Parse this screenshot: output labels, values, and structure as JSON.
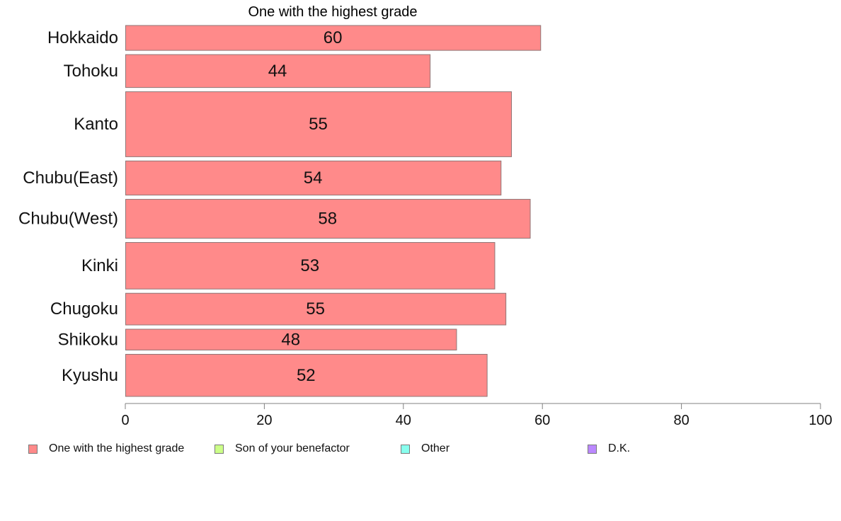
{
  "chart_data": {
    "type": "bar",
    "orientation": "horizontal",
    "title": "One with the highest grade",
    "categories": [
      "Hokkaido",
      "Tohoku",
      "Kanto",
      "Chubu(East)",
      "Chubu(West)",
      "Kinki",
      "Chugoku",
      "Shikoku",
      "Kyushu"
    ],
    "values": [
      59.7,
      43.8,
      55.5,
      54.0,
      58.2,
      53.1,
      54.7,
      47.6,
      52.0
    ],
    "data_labels": [
      "60",
      "44",
      "55",
      "54",
      "58",
      "53",
      "55",
      "48",
      "52"
    ],
    "bar_weights": [
      0.62,
      0.82,
      1.62,
      0.85,
      0.97,
      1.16,
      0.79,
      0.52,
      1.05
    ],
    "xlim": [
      0,
      100
    ],
    "x_ticks": [
      0,
      20,
      40,
      60,
      80,
      100
    ],
    "x_tick_labels": [
      "0",
      "20",
      "40",
      "60",
      "80",
      "100"
    ],
    "grid": false,
    "bar_color": "#ff8a8a",
    "bar_border_color": "#8f7676",
    "legend_position": "bottom",
    "legend": [
      {
        "label": "One with the highest grade",
        "color": "#ff8a8a"
      },
      {
        "label": "Son of your benefactor",
        "color": "#ccff88"
      },
      {
        "label": "Other",
        "color": "#88ffee"
      },
      {
        "label": "D.K.",
        "color": "#bb88ff"
      }
    ]
  }
}
